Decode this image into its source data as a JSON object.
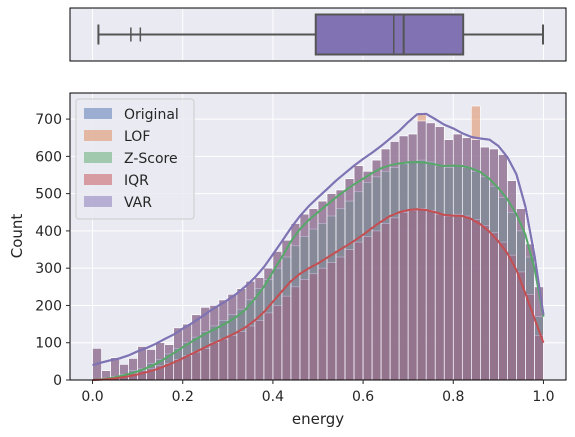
{
  "chart_data": [
    {
      "type": "boxplot",
      "variable": "energy",
      "color": "#8172b3",
      "stats": {
        "min": 0.013,
        "q1": 0.495,
        "median": 0.69,
        "q3": 0.822,
        "max": 0.999,
        "mean": 0.668
      },
      "outliers": [
        0.013,
        0.085,
        0.106
      ]
    },
    {
      "type": "histogram",
      "xlabel": "energy",
      "ylabel": "Count",
      "xlim": [
        -0.05,
        1.05
      ],
      "ylim": [
        0,
        770
      ],
      "xticks": [
        "0.0",
        "0.2",
        "0.4",
        "0.6",
        "0.8",
        "1.0"
      ],
      "xtick_values": [
        0,
        0.2,
        0.4,
        0.6,
        0.8,
        1.0
      ],
      "yticks": [
        "0",
        "100",
        "200",
        "300",
        "400",
        "500",
        "600",
        "700"
      ],
      "ytick_values": [
        0,
        100,
        200,
        300,
        400,
        500,
        600,
        700
      ],
      "grid": true,
      "legend_position": "upper-left",
      "bin_start": 0.0,
      "bin_width": 0.02,
      "series": [
        {
          "name": "Original",
          "color": "#4c72b0",
          "values": [
            85,
            25,
            60,
            42,
            58,
            90,
            82,
            100,
            95,
            140,
            150,
            175,
            195,
            200,
            215,
            230,
            245,
            265,
            275,
            300,
            345,
            375,
            420,
            445,
            460,
            480,
            500,
            510,
            540,
            575,
            560,
            590,
            620,
            640,
            655,
            660,
            695,
            690,
            680,
            645,
            660,
            650,
            645,
            625,
            620,
            605,
            535,
            460,
            365,
            250
          ],
          "kde": [
            40,
            47,
            53,
            58,
            66,
            77,
            86,
            97,
            110,
            122,
            138,
            152,
            168,
            185,
            200,
            215,
            232,
            252,
            275,
            303,
            337,
            372,
            408,
            440,
            467,
            490,
            512,
            535,
            555,
            575,
            593,
            610,
            628,
            648,
            668,
            692,
            713,
            714,
            700,
            685,
            675,
            662,
            652,
            648,
            645,
            628,
            598,
            552,
            465,
            335,
            175
          ]
        },
        {
          "name": "LOF",
          "color": "#dd8452",
          "values": [
            85,
            25,
            60,
            42,
            58,
            90,
            82,
            100,
            95,
            140,
            150,
            175,
            195,
            200,
            215,
            230,
            245,
            265,
            275,
            300,
            345,
            375,
            420,
            445,
            460,
            480,
            500,
            510,
            540,
            575,
            560,
            590,
            620,
            640,
            655,
            660,
            715,
            690,
            680,
            645,
            660,
            650,
            735,
            625,
            620,
            605,
            535,
            460,
            365,
            250
          ],
          "kde": []
        },
        {
          "name": "Z-Score",
          "color": "#55a868",
          "values": [
            0,
            5,
            10,
            15,
            25,
            30,
            45,
            55,
            70,
            85,
            100,
            115,
            130,
            145,
            160,
            175,
            190,
            215,
            245,
            270,
            300,
            330,
            360,
            385,
            405,
            420,
            440,
            460,
            480,
            505,
            530,
            545,
            560,
            570,
            580,
            585,
            590,
            585,
            575,
            570,
            575,
            570,
            560,
            545,
            520,
            490,
            450,
            400,
            330,
            170
          ],
          "kde": [
            0,
            2,
            5,
            10,
            16,
            23,
            32,
            43,
            57,
            72,
            88,
            103,
            117,
            130,
            142,
            155,
            170,
            190,
            218,
            250,
            290,
            330,
            372,
            405,
            430,
            450,
            470,
            490,
            508,
            525,
            540,
            555,
            568,
            576,
            581,
            584,
            585,
            583,
            578,
            574,
            575,
            574,
            568,
            558,
            540,
            515,
            485,
            445,
            390,
            300,
            170
          ]
        },
        {
          "name": "IQR",
          "color": "#c44e52",
          "values": [
            0,
            5,
            10,
            12,
            18,
            25,
            30,
            38,
            45,
            55,
            65,
            75,
            85,
            100,
            110,
            120,
            130,
            145,
            160,
            180,
            200,
            225,
            250,
            270,
            285,
            300,
            315,
            330,
            350,
            370,
            385,
            400,
            420,
            435,
            450,
            455,
            460,
            455,
            445,
            440,
            445,
            440,
            430,
            415,
            395,
            370,
            335,
            290,
            230,
            120
          ],
          "kde": [
            0,
            1,
            3,
            6,
            10,
            15,
            21,
            28,
            37,
            47,
            58,
            70,
            82,
            94,
            105,
            116,
            128,
            142,
            160,
            182,
            210,
            238,
            265,
            285,
            300,
            313,
            328,
            343,
            358,
            373,
            390,
            408,
            425,
            440,
            450,
            456,
            458,
            456,
            450,
            443,
            441,
            440,
            432,
            418,
            398,
            372,
            340,
            295,
            232,
            165,
            100
          ]
        },
        {
          "name": "VAR",
          "color": "#8172b3",
          "values": [
            85,
            25,
            60,
            42,
            58,
            90,
            82,
            100,
            95,
            140,
            150,
            175,
            195,
            200,
            215,
            230,
            245,
            265,
            275,
            300,
            345,
            375,
            420,
            445,
            460,
            480,
            500,
            510,
            540,
            575,
            560,
            590,
            620,
            640,
            655,
            660,
            695,
            690,
            680,
            645,
            660,
            650,
            645,
            625,
            620,
            605,
            535,
            460,
            365,
            250
          ],
          "kde": [
            40,
            47,
            53,
            58,
            66,
            77,
            86,
            97,
            110,
            122,
            138,
            152,
            168,
            185,
            200,
            215,
            232,
            252,
            275,
            303,
            337,
            372,
            408,
            440,
            467,
            490,
            512,
            535,
            555,
            575,
            593,
            610,
            628,
            648,
            668,
            692,
            713,
            714,
            700,
            685,
            675,
            662,
            652,
            648,
            645,
            628,
            598,
            552,
            465,
            335,
            175
          ]
        }
      ]
    }
  ]
}
